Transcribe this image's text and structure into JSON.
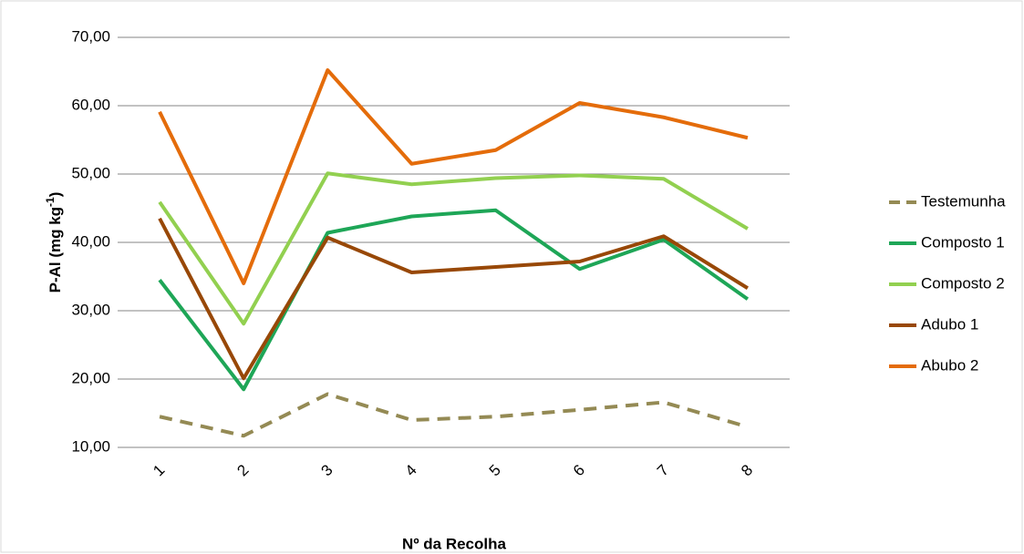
{
  "chart_data": {
    "type": "line",
    "x_label": "Nº da Recolha",
    "y_label": {
      "text": "P-Al (mg kg",
      "superscript": "-1",
      "end": ")"
    },
    "categories": [
      "1",
      "2",
      "3",
      "4",
      "5",
      "6",
      "7",
      "8"
    ],
    "series": [
      {
        "name": "Testemunha",
        "color": "#948a54",
        "dashed": true,
        "values": [
          14.5,
          11.7,
          17.8,
          14.0,
          14.5,
          15.5,
          16.6,
          13.0
        ]
      },
      {
        "name": "Composto 1",
        "color": "#1ea657",
        "values": [
          34.5,
          18.5,
          41.4,
          43.8,
          44.7,
          36.1,
          40.4,
          31.7
        ]
      },
      {
        "name": "Composto 2",
        "color": "#92d050",
        "values": [
          45.9,
          28.1,
          50.1,
          48.5,
          49.4,
          49.8,
          49.3,
          42.0
        ]
      },
      {
        "name": "Adubo 1",
        "color": "#984807",
        "values": [
          43.5,
          20.1,
          40.7,
          35.6,
          36.4,
          37.2,
          40.9,
          33.3
        ]
      },
      {
        "name": "Abubo 2",
        "color": "#e46c0a",
        "values": [
          59.1,
          34.0,
          65.2,
          51.5,
          53.5,
          60.4,
          58.3,
          55.3
        ]
      }
    ],
    "ylim": [
      10,
      70
    ],
    "yticks": [
      {
        "value": 10,
        "label": "10,00"
      },
      {
        "value": 20,
        "label": "20,00"
      },
      {
        "value": 30,
        "label": "30,00"
      },
      {
        "value": 40,
        "label": "40,00"
      },
      {
        "value": 50,
        "label": "50,00"
      },
      {
        "value": 60,
        "label": "60,00"
      },
      {
        "value": 70,
        "label": "70,00"
      }
    ],
    "grid": true,
    "legend": "right"
  }
}
